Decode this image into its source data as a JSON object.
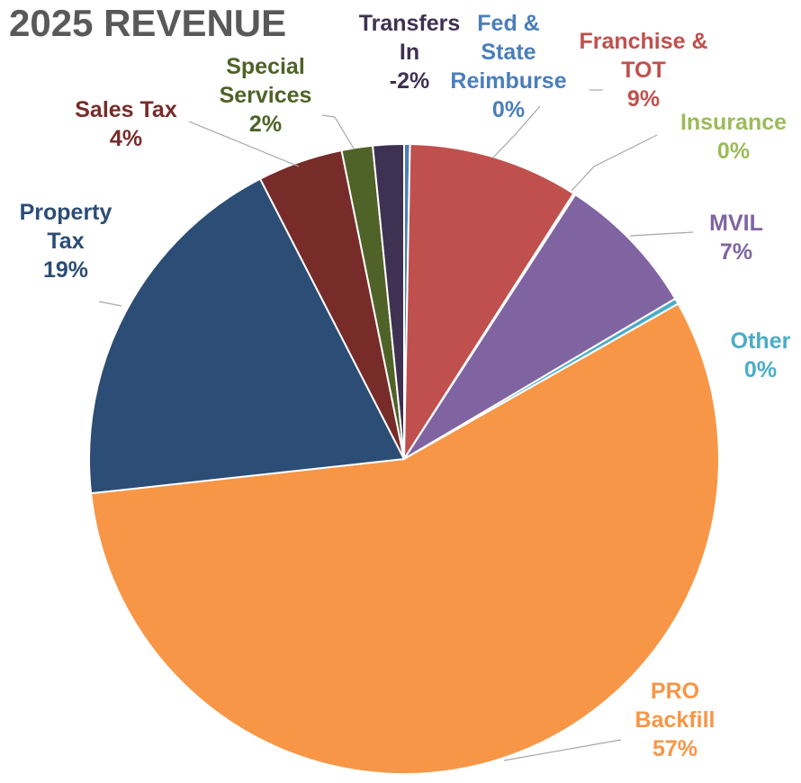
{
  "chart_data": {
    "type": "pie",
    "title": "2025 REVENUE",
    "categories": [
      "Fed & State Reimburse",
      "Franchise & TOT",
      "Insurance",
      "MVIL",
      "Other",
      "PRO Backfill",
      "Property Tax",
      "Sales Tax",
      "Special Services",
      "Transfers In"
    ],
    "values": [
      0.3,
      8.8,
      0.1,
      7.4,
      0.3,
      56.8,
      19.3,
      4.4,
      1.6,
      -1.6
    ],
    "value_labels": [
      "0%",
      "9%",
      "0%",
      "7%",
      "0%",
      "57%",
      "19%",
      "4%",
      "2%",
      "-2%"
    ],
    "colors": [
      "#4a7ebb",
      "#c0504d",
      "#9bbb59",
      "#8064a2",
      "#4bacc6",
      "#f79646",
      "#2c4d75",
      "#772c2a",
      "#4f6228",
      "#3f3151"
    ]
  }
}
